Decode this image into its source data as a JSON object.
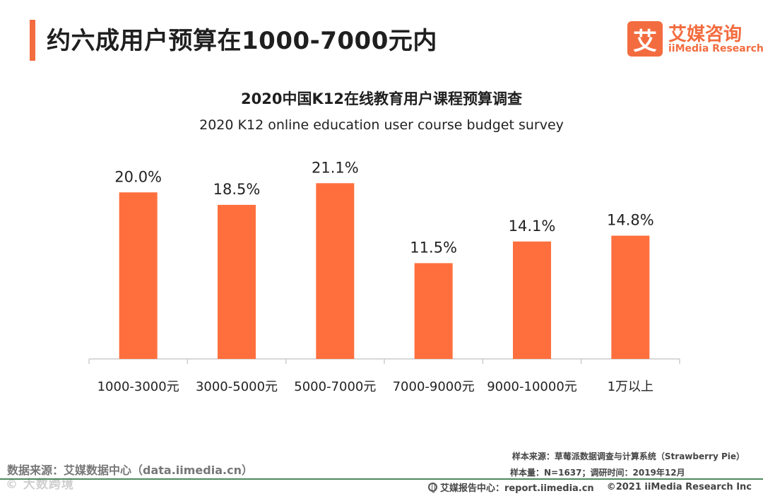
{
  "header": {
    "title": "约六成用户预算在1000-7000元内",
    "logo_mark": "艾",
    "logo_cn": "艾媒咨询",
    "logo_en": "iiMedia Research"
  },
  "colors": {
    "accent": "#f36c3f",
    "bar": "#ff6f3d",
    "axis": "#cccccc"
  },
  "chart_data": {
    "type": "bar",
    "title": "2020中国K12在线教育用户课程预算调查",
    "subtitle": "2020 K12 online education user course budget survey",
    "categories": [
      "1000-3000元",
      "3000-5000元",
      "5000-7000元",
      "7000-9000元",
      "9000-10000元",
      "1万以上"
    ],
    "values": [
      20.0,
      18.5,
      21.1,
      11.5,
      14.1,
      14.8
    ],
    "value_labels": [
      "20.0%",
      "18.5%",
      "21.1%",
      "11.5%",
      "14.1%",
      "14.8%"
    ],
    "unit": "%",
    "ylim": [
      0,
      23.5
    ],
    "xlabel": "",
    "ylabel": "",
    "grid": false,
    "legend": "none"
  },
  "footer": {
    "source": "数据来源：艾媒数据中心（data.iimedia.cn）",
    "watermark": "© 大数跨境",
    "sample_source": "样本来源：草莓派数据调查与计算系统（Strawberry Pie）",
    "sample_size": "样本量：N=1637；调研时间：2019年12月",
    "report_center": "艾媒报告中心：report.iimedia.cn",
    "copyright": "©2021 iiMedia Research Inc"
  }
}
